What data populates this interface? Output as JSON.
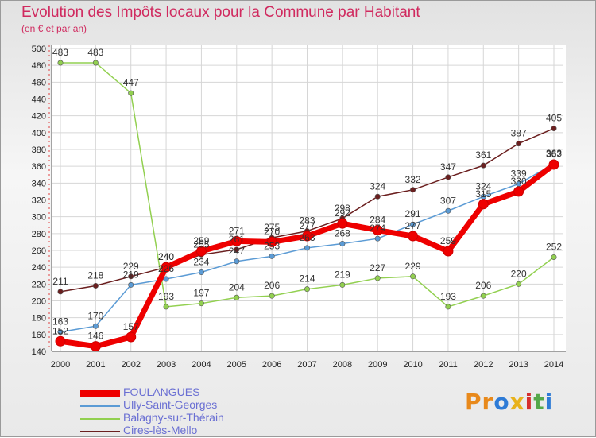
{
  "title": "Evolution des Impôts locaux pour la Commune par Habitant",
  "subtitle": "(en € et par an)",
  "logo": {
    "text": "Proxiti",
    "letters": [
      "P",
      "r",
      "o",
      "x",
      "i",
      "t",
      "i"
    ],
    "colors": [
      "#e8891b",
      "#e8891b",
      "#2e7bd6",
      "#e8b21b",
      "#d62e2e",
      "#55a84a",
      "#2e7bd6"
    ]
  },
  "chart_data": {
    "type": "line",
    "title": "Evolution des Impôts locaux pour la Commune par Habitant",
    "subtitle": "(en € et par an)",
    "xlabel": "",
    "ylabel": "",
    "ylim": [
      140,
      500
    ],
    "yticks": [
      140,
      160,
      180,
      200,
      220,
      240,
      260,
      280,
      300,
      320,
      340,
      360,
      380,
      400,
      420,
      440,
      460,
      480,
      500
    ],
    "x": [
      "2000",
      "2001",
      "2002",
      "2003",
      "2004",
      "2005",
      "2006",
      "2007",
      "2008",
      "2009",
      "2010",
      "2011",
      "2012",
      "2013",
      "2014"
    ],
    "series": [
      {
        "name": "FOULANGUES",
        "color": "#ee0000",
        "values": [
          152,
          146,
          157,
          240,
          259,
          271,
          270,
          277,
          292,
          284,
          277,
          259,
          315,
          330,
          362
        ],
        "labels": [
          "152",
          "146",
          "157",
          "240",
          "259",
          "271",
          "270",
          "277",
          "292",
          "284",
          "277",
          "259",
          "315",
          "330",
          "362"
        ]
      },
      {
        "name": "Ully-Saint-Georges",
        "color": "#5b9bd5",
        "values": [
          163,
          170,
          219,
          226,
          234,
          247,
          253,
          263,
          268,
          274,
          291,
          307,
          324,
          339,
          363
        ],
        "labels": [
          "163",
          "170",
          "219",
          "226",
          "234",
          "247",
          "253",
          "263",
          "268",
          "274",
          "291",
          "307",
          "324",
          "339",
          "363"
        ]
      },
      {
        "name": "Balagny-sur-Thérain",
        "color": "#92d050",
        "values": [
          483,
          483,
          447,
          193,
          197,
          204,
          206,
          214,
          219,
          227,
          229,
          193,
          206,
          220,
          252
        ],
        "labels": [
          "483",
          "483",
          "447",
          "193",
          "197",
          "204",
          "206",
          "214",
          "219",
          "227",
          "229",
          "193",
          "206",
          "220",
          "252"
        ]
      },
      {
        "name": "Cires-lès-Mello",
        "color": "#6b1f1f",
        "values": [
          211,
          218,
          229,
          240,
          255,
          261,
          275,
          283,
          298,
          324,
          332,
          347,
          361,
          387,
          405
        ],
        "labels": [
          "211",
          "218",
          "229",
          "240",
          "255",
          "261",
          "275",
          "283",
          "298",
          "324",
          "332",
          "347",
          "361",
          "387",
          "405"
        ]
      }
    ]
  }
}
